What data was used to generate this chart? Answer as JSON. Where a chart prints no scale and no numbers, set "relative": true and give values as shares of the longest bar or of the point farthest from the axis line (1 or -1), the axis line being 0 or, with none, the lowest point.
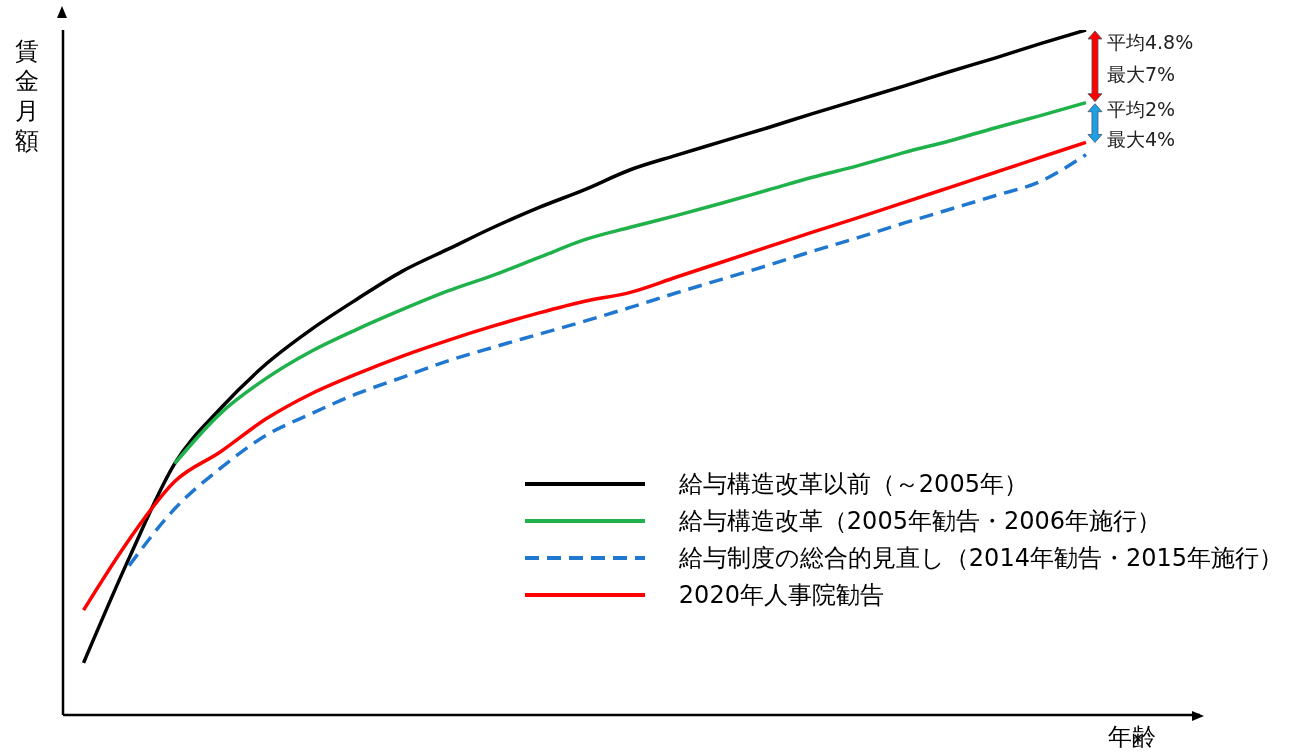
{
  "chart_data": {
    "type": "line",
    "relative": true,
    "xlabel": "年齢",
    "ylabel": "賃金月額",
    "legend": "bottom right",
    "marker": "none",
    "categories": [
      null,
      null,
      null,
      null,
      null,
      null,
      null,
      null,
      null,
      null,
      null,
      null,
      null,
      null,
      null,
      null,
      null,
      null,
      null,
      null,
      null,
      null,
      null
    ],
    "series": [
      {
        "name": "給与構造改革以前（～2005年）",
        "color": "#000000",
        "values": [
          0.076,
          0.229,
          0.367,
          0.447,
          0.512,
          0.563,
          0.607,
          0.648,
          0.68,
          0.712,
          0.741,
          0.767,
          0.796,
          0.817,
          0.837,
          0.857,
          0.878,
          0.898,
          0.918,
          0.939,
          0.959,
          0.98,
          1
        ]
      },
      {
        "name": "給与構造改革（2005年勧告・2006年施行）",
        "color": "#1fb14a",
        "values": [
          null,
          null,
          0.367,
          0.44,
          0.491,
          0.531,
          0.563,
          0.592,
          0.619,
          0.642,
          0.668,
          0.694,
          0.712,
          0.729,
          0.747,
          0.766,
          0.785,
          0.802,
          0.821,
          0.838,
          0.857,
          0.875,
          0.894
        ]
      },
      {
        "name": "給与制度の総合的見直し（2014年勧告・2015年施行）",
        "color": "#1f77d0",
        "line_style": "dashed",
        "values": [
          null,
          0.218,
          0.301,
          0.36,
          0.408,
          0.44,
          0.469,
          0.493,
          0.517,
          0.537,
          0.556,
          0.575,
          0.595,
          0.616,
          0.636,
          0.656,
          0.677,
          0.697,
          0.718,
          0.738,
          0.758,
          0.779,
          0.818
        ]
      },
      {
        "name": "2020年人事院勧告",
        "color": "#ff0000",
        "values": [
          0.153,
          0.256,
          0.341,
          0.384,
          0.432,
          0.469,
          0.498,
          0.524,
          0.547,
          0.568,
          0.587,
          0.604,
          0.617,
          0.639,
          0.661,
          0.683,
          0.705,
          0.726,
          0.748,
          0.77,
          0.792,
          0.814,
          0.836
        ]
      }
    ],
    "annotations": [
      "平均4.8%",
      "最大7%",
      "平均2%",
      "最大4%"
    ]
  }
}
